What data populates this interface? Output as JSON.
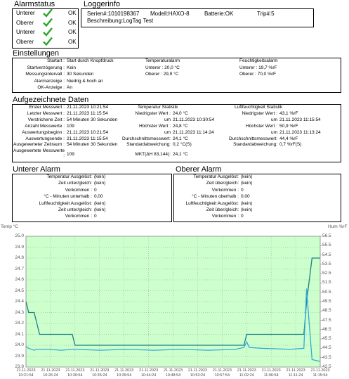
{
  "alarm_status": {
    "title": "Alarmstatus",
    "rows": [
      {
        "label": "Unterer",
        "status": "OK"
      },
      {
        "label": "Oberer",
        "status": "OK"
      },
      {
        "label": "Unterer",
        "status": "OK"
      },
      {
        "label": "Oberer",
        "status": "OK"
      }
    ]
  },
  "logger_info": {
    "title": "Loggerinfo",
    "serial": "Serien#:1010198367",
    "model": "Modell:HAXO-8",
    "battery": "Batterie:OK",
    "trip": "Trip#:5",
    "description": "Beschreibung:LogTag Test"
  },
  "settings": {
    "title": "Einstellungen",
    "general": [
      [
        "Startart :",
        "Start durch Knopfdruck"
      ],
      [
        "Startverzögerung :",
        "Kein"
      ],
      [
        "Messungsintervall :",
        "30 Sekunden"
      ],
      [
        "Alarmanzeige :",
        "Niedrig & hoch an"
      ],
      [
        "OK-Anzeige :",
        "An"
      ]
    ],
    "temperature_alarm": {
      "header": "Temperaturalarm",
      "rows": [
        "Unterer : 20,0 °C",
        "Oberer : 29,9 °C"
      ]
    },
    "humidity_alarm": {
      "header": "Feuchtigkeitsalarm",
      "rows": [
        "Unterer : 19,7 %rF",
        "Oberer : 70,0 %rF"
      ]
    }
  },
  "recorded": {
    "title": "Aufgezeichnete Daten",
    "general": [
      [
        "Erster Messwert :",
        "21.11.2023 10:21:54"
      ],
      [
        "Letzter Messwert :",
        "21.11.2023 11:15:54"
      ],
      [
        "Verstrichene Zeit :",
        "54 Minuten 30 Sekunden"
      ],
      [
        "Anzahl Messwerte :",
        "109"
      ],
      [
        "Auswertungsbeginn :",
        "21.11.2023 10:21:54"
      ],
      [
        "Auswertungsende :",
        "21.11.2023 11:15:54"
      ],
      [
        "Ausgewerteter Zeitraum :",
        "54 Minuten 30 Sekunden"
      ],
      [
        "Ausgewertete Messwerte :",
        "109"
      ]
    ],
    "temperature": {
      "header": "Temperatur Statistik",
      "rows": [
        [
          "Niedrigster Wert :",
          "24,0 °C"
        ],
        [
          "um",
          "21.11.2023 10:30:54"
        ],
        [
          "Höchster Wert :",
          "24,8 °C"
        ],
        [
          "um",
          "21.11.2023 11:14:24"
        ],
        [
          "Durchschnittsmesswert:",
          "24,1 °C"
        ],
        [
          "Standardabweichung:",
          "0,2 °C(S)"
        ],
        [
          "MKT(ΔH 83,144):",
          "24,1 °C"
        ]
      ]
    },
    "humidity": {
      "header": "Luftfeuchtigkeit Statistik",
      "rows": [
        [
          "Niedrigster Wert :",
          "43,1 %rF"
        ],
        [
          "um",
          "21.11.2023 11:15:54"
        ],
        [
          "Höchster Wert :",
          "50,9 %rF"
        ],
        [
          "um",
          "21.11.2023 11:13:24"
        ],
        [
          "Durchschnittsmesswert:",
          "44,4 %rF"
        ],
        [
          "Standardabweichung:",
          "0,7 %rF(S)"
        ]
      ]
    }
  },
  "lower_alarm": {
    "title": "Unterer Alarm",
    "rows": [
      [
        "Temperatur Ausgelöst:",
        "(kein)"
      ],
      [
        "Zeit unter/gleich:",
        "(kein)"
      ],
      [
        "Vorkommen :",
        "0"
      ],
      [
        "°C - Minuten unterhalb :",
        "0,00"
      ],
      [
        "Luftfeuchtigkeit Ausgelöst:",
        "(kein)"
      ],
      [
        "Zeit unter/gleich:",
        "(kein)"
      ],
      [
        "Vorkommen :",
        "0"
      ]
    ]
  },
  "upper_alarm": {
    "title": "Oberer Alarm",
    "rows": [
      [
        "Temperatur Ausgelöst:",
        "(kein)"
      ],
      [
        "Zeit über/gleich:",
        "(kein)"
      ],
      [
        "Vorkommen :",
        "0"
      ],
      [
        "°C - Minuten oberhalb :",
        "0,00"
      ],
      [
        "Luftfeuchtigkeit Ausgelöst:",
        "(kein)"
      ],
      [
        "Zeit über/gleich:",
        "(kein)"
      ],
      [
        "Vorkommen :",
        "0"
      ]
    ]
  },
  "chart_data": {
    "type": "line",
    "ylabel": "Temp °C",
    "y2label": "Hum %rF",
    "grid": true,
    "background": "#ccffcc",
    "x": [
      "21.11.2023 10:21:54",
      "21.11.2023 10:22:24",
      "21.11.2023 10:23:24",
      "21.11.2023 10:23:54",
      "21.11.2023 10:24:24",
      "21.11.2023 10:25:54",
      "21.11.2023 10:28:24",
      "21.11.2023 10:30:24",
      "21.11.2023 10:30:54",
      "21.11.2023 10:35:24",
      "21.11.2023 10:40:24",
      "21.11.2023 10:45:24",
      "21.11.2023 10:50:24",
      "21.11.2023 10:55:24",
      "21.11.2023 11:00:24",
      "21.11.2023 11:01:54",
      "21.11.2023 11:02:24",
      "21.11.2023 11:02:54",
      "21.11.2023 11:05:24",
      "21.11.2023 11:10:24",
      "21.11.2023 11:12:54",
      "21.11.2023 11:13:24",
      "21.11.2023 11:13:54",
      "21.11.2023 11:14:24",
      "21.11.2023 11:15:54"
    ],
    "series": [
      {
        "color": "#1b7f86",
        "values": [
          24.4,
          24.3,
          24.3,
          24.2,
          24.1,
          24.1,
          24.1,
          24.1,
          24,
          24,
          24,
          24,
          24,
          24,
          24,
          24,
          24.1,
          24.1,
          24.1,
          24.1,
          24.1,
          24.4,
          24.6,
          24.8,
          24.8
        ]
      },
      {
        "color": "#35a8dc",
        "axis": "y2",
        "values": [
          44.7,
          44.5,
          44.3,
          44.4,
          44.4,
          44.4,
          44.3,
          44.4,
          44.4,
          44.3,
          44.4,
          44.3,
          44.4,
          44.3,
          44.4,
          44.6,
          45.2,
          44.6,
          44.5,
          44.4,
          44.5,
          50.9,
          47,
          43.3,
          43.1
        ]
      }
    ],
    "xlim": [
      "21.11.2023 10:21:54",
      "21.11.2023 11:15:54"
    ],
    "xticks": [
      "21.11.2023 10:21:54",
      "21.11.2023 10:26:24",
      "21.11.2023 10:30:54",
      "21.11.2023 10:35:24",
      "21.11.2023 10:39:54",
      "21.11.2023 10:44:24",
      "21.11.2023 10:48:54",
      "21.11.2023 10:53:24",
      "21.11.2023 10:57:54",
      "21.11.2023 11:02:24",
      "21.11.2023 11:06:54",
      "21.11.2023 11:11:24",
      "21.11.2023 11:15:54"
    ],
    "ylim": [
      23.8,
      25
    ],
    "yticks": [
      {
        "value": 25,
        "label": "25.0"
      },
      24.9,
      24.8,
      24.7,
      24.6,
      24.5,
      24.4,
      24.3,
      24.2,
      24.1,
      {
        "value": 24,
        "label": "24.0"
      },
      23.9,
      23.8
    ],
    "y2lim": [
      42.5,
      56.5
    ],
    "y2ticks": [
      56.5,
      55.5,
      54.5,
      53.5,
      52.5,
      51.5,
      50.5,
      49.5,
      48.5,
      47.5,
      46.5,
      45.5,
      44.5,
      43.5,
      42.5
    ]
  }
}
